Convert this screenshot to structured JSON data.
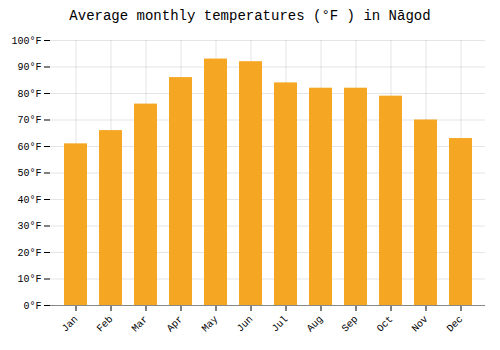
{
  "chart_data": {
    "type": "bar",
    "title": "Average monthly temperatures (°F ) in Nāgod",
    "categories": [
      "Jan",
      "Feb",
      "Mar",
      "Apr",
      "May",
      "Jun",
      "Jul",
      "Aug",
      "Sep",
      "Oct",
      "Nov",
      "Dec"
    ],
    "values": [
      61,
      66,
      76,
      86,
      93,
      92,
      84,
      82,
      82,
      79,
      70,
      63
    ],
    "color": "#F5A623",
    "ylim": [
      0,
      100
    ],
    "yticks": [
      {
        "value": 0,
        "label": "0°F"
      },
      {
        "value": 10,
        "label": "10°F"
      },
      {
        "value": 20,
        "label": "20°F"
      },
      {
        "value": 30,
        "label": "30°F"
      },
      {
        "value": 40,
        "label": "40°F"
      },
      {
        "value": 50,
        "label": "50°F"
      },
      {
        "value": 60,
        "label": "60°F"
      },
      {
        "value": 70,
        "label": "70°F"
      },
      {
        "value": 80,
        "label": "80°F"
      },
      {
        "value": 90,
        "label": "90°F"
      },
      {
        "value": 100,
        "label": "100°F"
      }
    ],
    "grid": true
  }
}
